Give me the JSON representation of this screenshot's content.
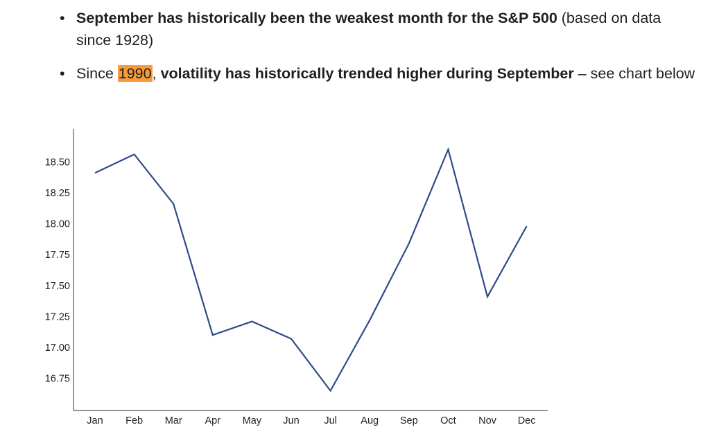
{
  "bullets": [
    {
      "bold": "September has historically been the weakest month for the S&P 500",
      "rest": " (based on data since 1928)"
    },
    {
      "lead": "Since ",
      "highlight": "1990",
      "comma": ", ",
      "bold": "volatility has historically trended higher during September",
      "rest": " – see chart below"
    }
  ],
  "colors": {
    "line": "#2e4a8a",
    "axis": "#555555",
    "highlight": "#f79a3c"
  },
  "chart_data": {
    "type": "line",
    "categories": [
      "Jan",
      "Feb",
      "Mar",
      "Apr",
      "May",
      "Jun",
      "Jul",
      "Aug",
      "Sep",
      "Oct",
      "Nov",
      "Dec"
    ],
    "series": [
      {
        "values": [
          18.41,
          18.56,
          18.16,
          17.1,
          17.21,
          17.07,
          16.65,
          17.22,
          17.84,
          18.6,
          17.41,
          17.98
        ]
      }
    ],
    "y_ticks": [
      "18.50",
      "18.25",
      "18.00",
      "17.75",
      "17.50",
      "17.25",
      "17.00",
      "16.75"
    ],
    "ylim": [
      16.58,
      18.67
    ],
    "grid": false
  }
}
